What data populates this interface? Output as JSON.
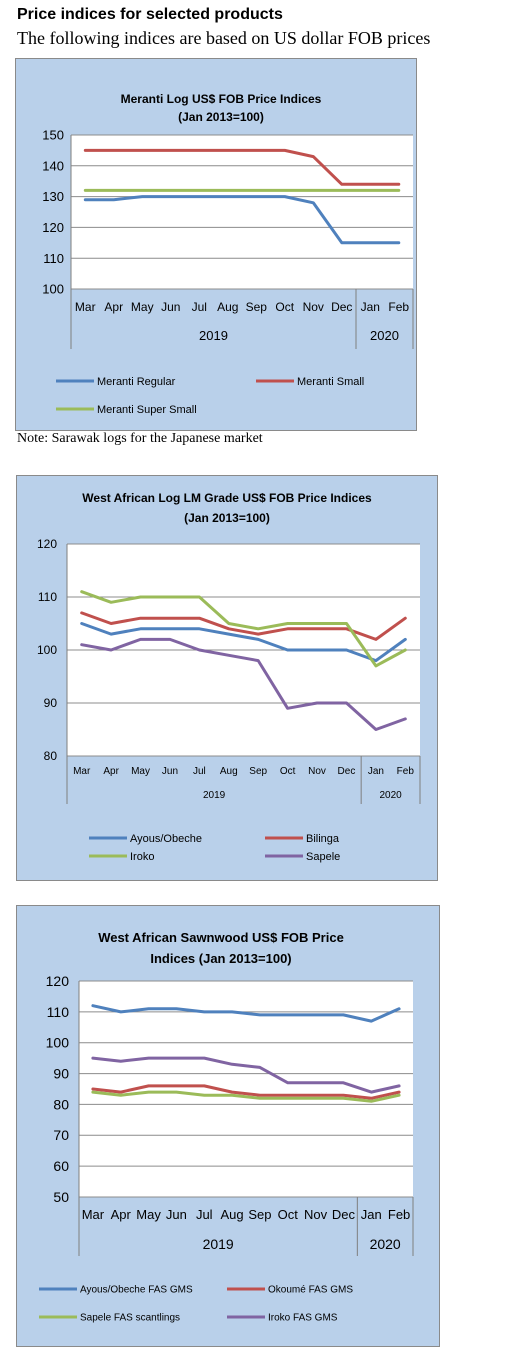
{
  "page": {
    "heading": "Price indices for selected products",
    "subheading": "The following indices are based on US dollar FOB prices",
    "note": "Note: Sarawak logs for the Japanese market"
  },
  "chart_data": [
    {
      "type": "line",
      "title": [
        "Meranti Log US$ FOB Price Indices",
        "(Jan 2013=100)"
      ],
      "categories": [
        "Mar",
        "Apr",
        "May",
        "Jun",
        "Jul",
        "Aug",
        "Sep",
        "Oct",
        "Nov",
        "Dec",
        "Jan",
        "Feb"
      ],
      "year_labels": [
        {
          "label": "2019",
          "from": 0,
          "to": 9
        },
        {
          "label": "2020",
          "from": 10,
          "to": 11
        }
      ],
      "ylim": [
        100,
        150
      ],
      "yticks": [
        100,
        110,
        120,
        130,
        140,
        150
      ],
      "grid": true,
      "legend": "bottom",
      "series": [
        {
          "name": "Meranti Regular",
          "color": "#4f81bd",
          "values": [
            129,
            129,
            130,
            130,
            130,
            130,
            130,
            130,
            128,
            115,
            115,
            115
          ]
        },
        {
          "name": "Meranti Small",
          "color": "#c0504d",
          "values": [
            145,
            145,
            145,
            145,
            145,
            145,
            145,
            145,
            143,
            134,
            134,
            134
          ]
        },
        {
          "name": "Meranti Super Small",
          "color": "#9bbb59",
          "values": [
            132,
            132,
            132,
            132,
            132,
            132,
            132,
            132,
            132,
            132,
            132,
            132
          ]
        }
      ]
    },
    {
      "type": "line",
      "title": [
        "West African Log LM Grade US$ FOB Price Indices",
        "(Jan 2013=100)"
      ],
      "categories": [
        "Mar",
        "Apr",
        "May",
        "Jun",
        "Jul",
        "Aug",
        "Sep",
        "Oct",
        "Nov",
        "Dec",
        "Jan",
        "Feb"
      ],
      "year_labels": [
        {
          "label": "2019",
          "from": 0,
          "to": 9
        },
        {
          "label": "2020",
          "from": 10,
          "to": 11
        }
      ],
      "ylim": [
        80,
        120
      ],
      "yticks": [
        80,
        90,
        100,
        110,
        120
      ],
      "grid": true,
      "legend": "bottom",
      "series": [
        {
          "name": "Ayous/Obeche",
          "color": "#4f81bd",
          "values": [
            105,
            103,
            104,
            104,
            104,
            103,
            102,
            100,
            100,
            100,
            98,
            102
          ]
        },
        {
          "name": "Bilinga",
          "color": "#c0504d",
          "values": [
            107,
            105,
            106,
            106,
            106,
            104,
            103,
            104,
            104,
            104,
            102,
            106
          ]
        },
        {
          "name": "Iroko",
          "color": "#9bbb59",
          "values": [
            111,
            109,
            110,
            110,
            110,
            105,
            104,
            105,
            105,
            105,
            97,
            100
          ]
        },
        {
          "name": "Sapele",
          "color": "#8064a2",
          "values": [
            101,
            100,
            102,
            102,
            100,
            99,
            98,
            89,
            90,
            90,
            85,
            87
          ]
        }
      ]
    },
    {
      "type": "line",
      "title": [
        "West African Sawnwood US$ FOB Price",
        "Indices (Jan 2013=100)"
      ],
      "categories": [
        "Mar",
        "Apr",
        "May",
        "Jun",
        "Jul",
        "Aug",
        "Sep",
        "Oct",
        "Nov",
        "Dec",
        "Jan",
        "Feb"
      ],
      "year_labels": [
        {
          "label": "2019",
          "from": 0,
          "to": 9
        },
        {
          "label": "2020",
          "from": 10,
          "to": 11
        }
      ],
      "ylim": [
        50,
        120
      ],
      "yticks": [
        50,
        60,
        70,
        80,
        90,
        100,
        110,
        120
      ],
      "grid": true,
      "legend": "bottom",
      "series": [
        {
          "name": "Ayous/Obeche FAS GMS",
          "color": "#4f81bd",
          "values": [
            112,
            110,
            111,
            111,
            110,
            110,
            109,
            109,
            109,
            109,
            107,
            111
          ]
        },
        {
          "name": "Okoumé FAS GMS",
          "color": "#c0504d",
          "values": [
            85,
            84,
            86,
            86,
            86,
            84,
            83,
            83,
            83,
            83,
            82,
            84
          ]
        },
        {
          "name": "Sapele FAS scantlings",
          "color": "#9bbb59",
          "values": [
            84,
            83,
            84,
            84,
            83,
            83,
            82,
            82,
            82,
            82,
            81,
            83
          ]
        },
        {
          "name": "Iroko FAS GMS",
          "color": "#8064a2",
          "values": [
            95,
            94,
            95,
            95,
            95,
            93,
            92,
            87,
            87,
            87,
            84,
            86
          ]
        }
      ]
    }
  ]
}
